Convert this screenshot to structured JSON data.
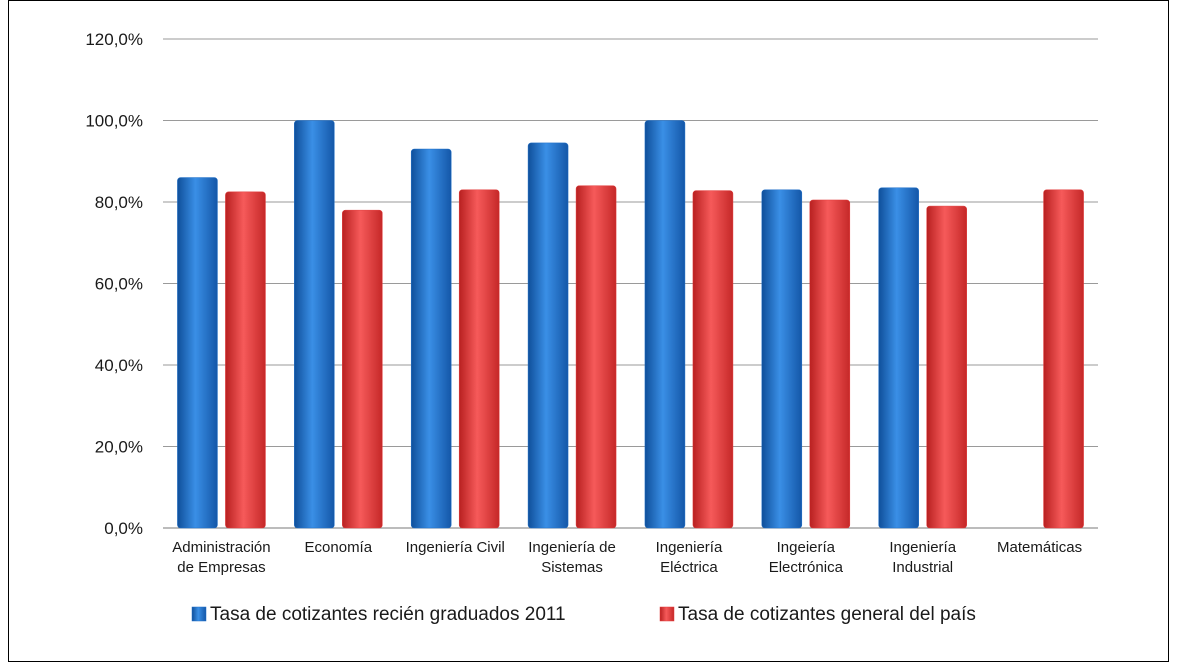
{
  "chart_data": {
    "type": "bar",
    "categories": [
      [
        "Administración",
        "de Empresas"
      ],
      [
        "Economía"
      ],
      [
        "Ingeniería Civil"
      ],
      [
        "Ingeniería de",
        "Sistemas"
      ],
      [
        "Ingeniería",
        "Eléctrica"
      ],
      [
        "Ingeiería",
        "Electrónica"
      ],
      [
        "Ingeniería",
        "Industrial"
      ],
      [
        "Matemáticas"
      ]
    ],
    "series": [
      {
        "name": "Tasa de cotizantes recién graduados 2011",
        "color": "#1f6fc8",
        "values": [
          86.0,
          100.0,
          93.0,
          94.5,
          100.0,
          83.0,
          83.5,
          null
        ]
      },
      {
        "name": "Tasa de cotizantes general del país",
        "color": "#e23b3b",
        "values": [
          82.5,
          78.0,
          83.0,
          84.0,
          82.8,
          80.5,
          79.0,
          83.0
        ]
      }
    ],
    "yticks": [
      "0,0%",
      "20,0%",
      "40,0%",
      "60,0%",
      "80,0%",
      "100,0%",
      "120,0%"
    ],
    "ylim": [
      0,
      120
    ],
    "grid": true,
    "legend": "bottom-center"
  }
}
